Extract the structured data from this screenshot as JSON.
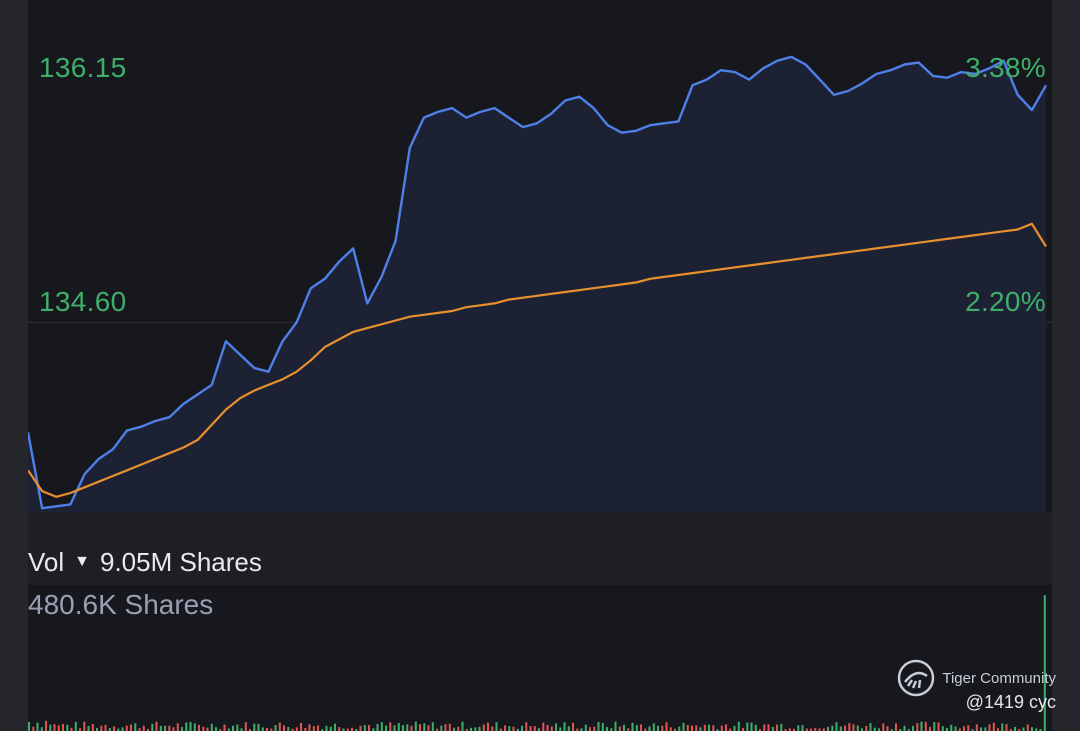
{
  "chart_data": {
    "type": "line",
    "y_labels": {
      "top_price": "136.15",
      "mid_price": "134.60",
      "top_pct": "3.38%",
      "mid_pct": "2.20%"
    },
    "ylim": [
      133.6,
      136.3
    ],
    "series": [
      {
        "color": "#4f7fe8",
        "values": [
          134.02,
          133.62,
          133.63,
          133.64,
          133.8,
          133.88,
          133.93,
          134.03,
          134.05,
          134.08,
          134.1,
          134.17,
          134.22,
          134.27,
          134.5,
          134.43,
          134.36,
          134.34,
          134.5,
          134.6,
          134.78,
          134.83,
          134.92,
          134.99,
          134.7,
          134.84,
          135.03,
          135.52,
          135.68,
          135.71,
          135.73,
          135.68,
          135.71,
          135.73,
          135.68,
          135.63,
          135.65,
          135.7,
          135.77,
          135.79,
          135.73,
          135.64,
          135.6,
          135.61,
          135.64,
          135.65,
          135.66,
          135.85,
          135.88,
          135.93,
          135.92,
          135.88,
          135.94,
          135.98,
          136.0,
          135.96,
          135.88,
          135.8,
          135.82,
          135.86,
          135.91,
          135.93,
          135.96,
          135.97,
          135.9,
          135.89,
          135.92,
          135.91,
          135.94,
          135.98,
          135.8,
          135.72,
          135.85
        ]
      },
      {
        "color": "#e8902d",
        "values": [
          133.82,
          133.71,
          133.68,
          133.7,
          133.73,
          133.76,
          133.79,
          133.82,
          133.85,
          133.88,
          133.91,
          133.94,
          133.98,
          134.06,
          134.14,
          134.2,
          134.24,
          134.27,
          134.3,
          134.34,
          134.4,
          134.47,
          134.51,
          134.55,
          134.57,
          134.59,
          134.61,
          134.63,
          134.64,
          134.65,
          134.66,
          134.68,
          134.69,
          134.7,
          134.72,
          134.73,
          134.74,
          134.75,
          134.76,
          134.77,
          134.78,
          134.79,
          134.8,
          134.81,
          134.83,
          134.84,
          134.85,
          134.86,
          134.87,
          134.88,
          134.89,
          134.9,
          134.91,
          134.92,
          134.93,
          134.94,
          134.95,
          134.96,
          134.97,
          134.98,
          134.99,
          135.0,
          135.01,
          135.02,
          135.03,
          135.04,
          135.05,
          135.06,
          135.07,
          135.08,
          135.09,
          135.12,
          135.0
        ]
      }
    ],
    "grid": "horizontal line at 134.60",
    "volume": {
      "last_bar_fraction": 1.0,
      "typical_bar_fraction": 0.06
    }
  },
  "volume": {
    "title": "Vol",
    "total": "9.05M Shares",
    "current": "480.6K Shares"
  },
  "watermark": {
    "brand": "Tiger Community",
    "handle": "@1419 cyc"
  },
  "colors": {
    "up": "#3fae6a",
    "down": "#e0574f",
    "price_line": "#4f7fe8",
    "avg_line": "#e8902d"
  }
}
